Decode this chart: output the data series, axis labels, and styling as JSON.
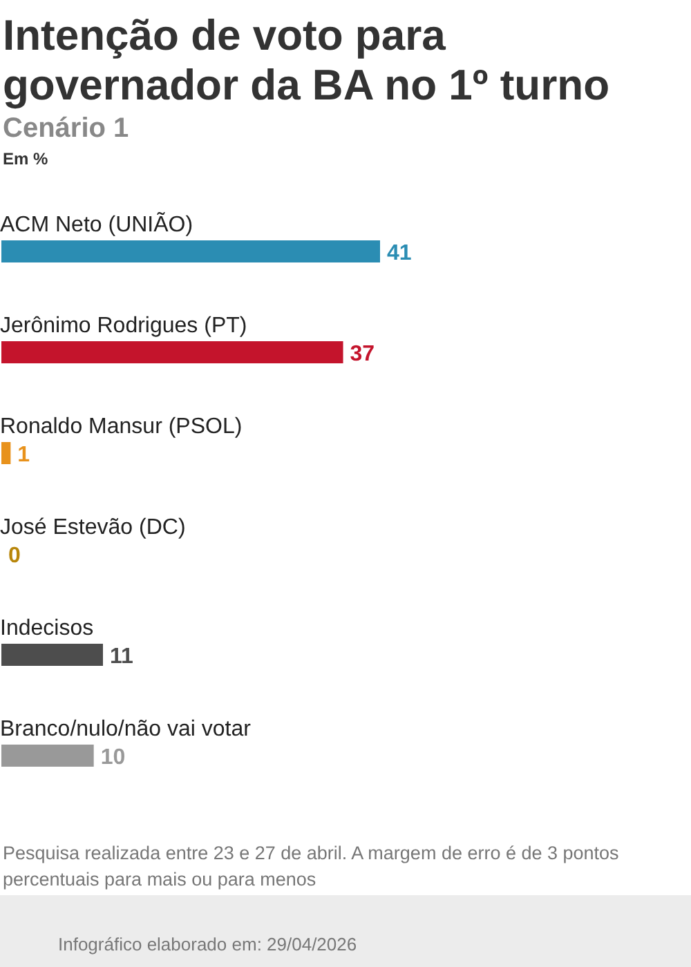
{
  "chart_data": {
    "type": "bar",
    "orientation": "horizontal",
    "title": "Intenção de voto para governador da BA no 1º turno",
    "subtitle": "Cenário 1",
    "xlabel": "Em %",
    "categories": [
      "ACM Neto (UNIÃO)",
      "Jerônimo Rodrigues (PT)",
      "Ronaldo Mansur (PSOL)",
      "José Estevão (DC)",
      "Indecisos",
      "Branco/nulo/não vai votar"
    ],
    "values": [
      41,
      37,
      1,
      0,
      11,
      10
    ],
    "colors": [
      "#2b8db3",
      "#c4142c",
      "#e8921c",
      "#b8860b",
      "#4d4d4d",
      "#999999"
    ],
    "data_labels": true,
    "annotations": [
      "Pesquisa realizada entre 23 e 27 de abril. A margem de erro é de 3 pontos percentuais para mais ou para menos",
      "Infográfico elaborado em: 29/04/2026"
    ]
  }
}
